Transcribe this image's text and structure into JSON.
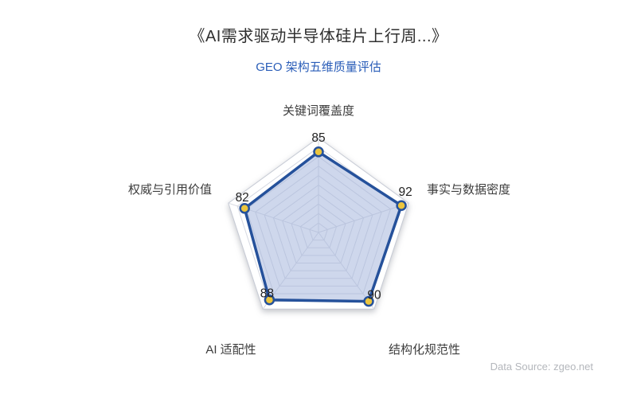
{
  "page": {
    "title": "《AI需求驱动半导体硅片上行周...》",
    "subtitle": "GEO 架构五维质量评估",
    "data_source": "Data Source: zgeo.net"
  },
  "chart_data": {
    "type": "radar",
    "title": "《AI需求驱动半导体硅片上行周...》",
    "subtitle": "GEO 架构五维质量评估",
    "max": 100,
    "grid_levels": 10,
    "grid_shape": "pentagon",
    "legend": "none",
    "indicators": [
      {
        "name": "关键词覆盖度",
        "max": 100
      },
      {
        "name": "事实与数据密度",
        "max": 100
      },
      {
        "name": "结构化规范性",
        "max": 100
      },
      {
        "name": "AI 适配性",
        "max": 100
      },
      {
        "name": "权威与引用价值",
        "max": 100
      }
    ],
    "series": [
      {
        "name": "GEO 架构五维质量评估",
        "values": [
          85,
          92,
          90,
          88,
          82
        ]
      }
    ],
    "colors": {
      "line": "#25519b",
      "point": "#ecc53d",
      "area": "rgba(166,182,221,0.55)",
      "grid": "#d5d8e1",
      "title": "#303030",
      "subtitle": "#2a5db8",
      "source": "#b4b7bc"
    }
  }
}
